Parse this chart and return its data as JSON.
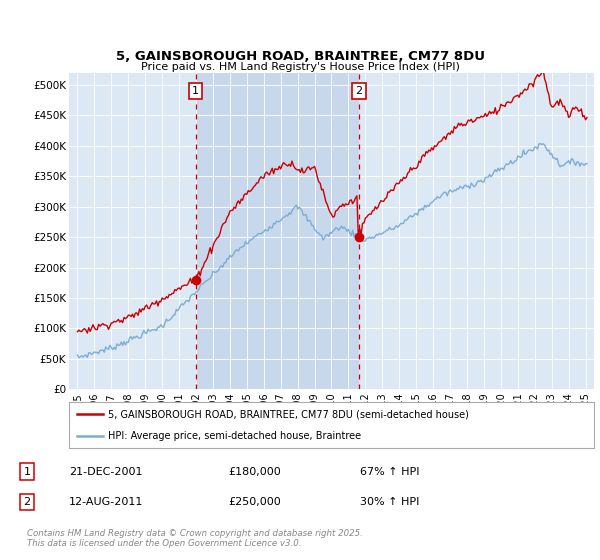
{
  "title": "5, GAINSBOROUGH ROAD, BRAINTREE, CM77 8DU",
  "subtitle": "Price paid vs. HM Land Registry's House Price Index (HPI)",
  "xlim_left": 1994.5,
  "xlim_right": 2025.5,
  "ylim": [
    0,
    520000
  ],
  "yticks": [
    0,
    50000,
    100000,
    150000,
    200000,
    250000,
    300000,
    350000,
    400000,
    450000,
    500000
  ],
  "ytick_labels": [
    "£0",
    "£50K",
    "£100K",
    "£150K",
    "£200K",
    "£250K",
    "£300K",
    "£350K",
    "£400K",
    "£450K",
    "£500K"
  ],
  "xticks": [
    1995,
    1996,
    1997,
    1998,
    1999,
    2000,
    2001,
    2002,
    2003,
    2004,
    2005,
    2006,
    2007,
    2008,
    2009,
    2010,
    2011,
    2012,
    2013,
    2014,
    2015,
    2016,
    2017,
    2018,
    2019,
    2020,
    2021,
    2022,
    2023,
    2024,
    2025
  ],
  "red_line_color": "#cc0000",
  "blue_line_color": "#7eadd4",
  "marker1_x": 2001.97,
  "marker1_y": 180000,
  "marker2_x": 2011.62,
  "marker2_y": 250000,
  "vline_color": "#cc0000",
  "vline_style": "--",
  "shade_color": "#c8d8ec",
  "legend_label_red": "5, GAINSBOROUGH ROAD, BRAINTREE, CM77 8DU (semi-detached house)",
  "legend_label_blue": "HPI: Average price, semi-detached house, Braintree",
  "annotation1_label": "1",
  "annotation2_label": "2",
  "table_row1": [
    "1",
    "21-DEC-2001",
    "£180,000",
    "67% ↑ HPI"
  ],
  "table_row2": [
    "2",
    "12-AUG-2011",
    "£250,000",
    "30% ↑ HPI"
  ],
  "footer": "Contains HM Land Registry data © Crown copyright and database right 2025.\nThis data is licensed under the Open Government Licence v3.0.",
  "bg_color": "#dce9f5",
  "fig_bg_color": "#ffffff"
}
